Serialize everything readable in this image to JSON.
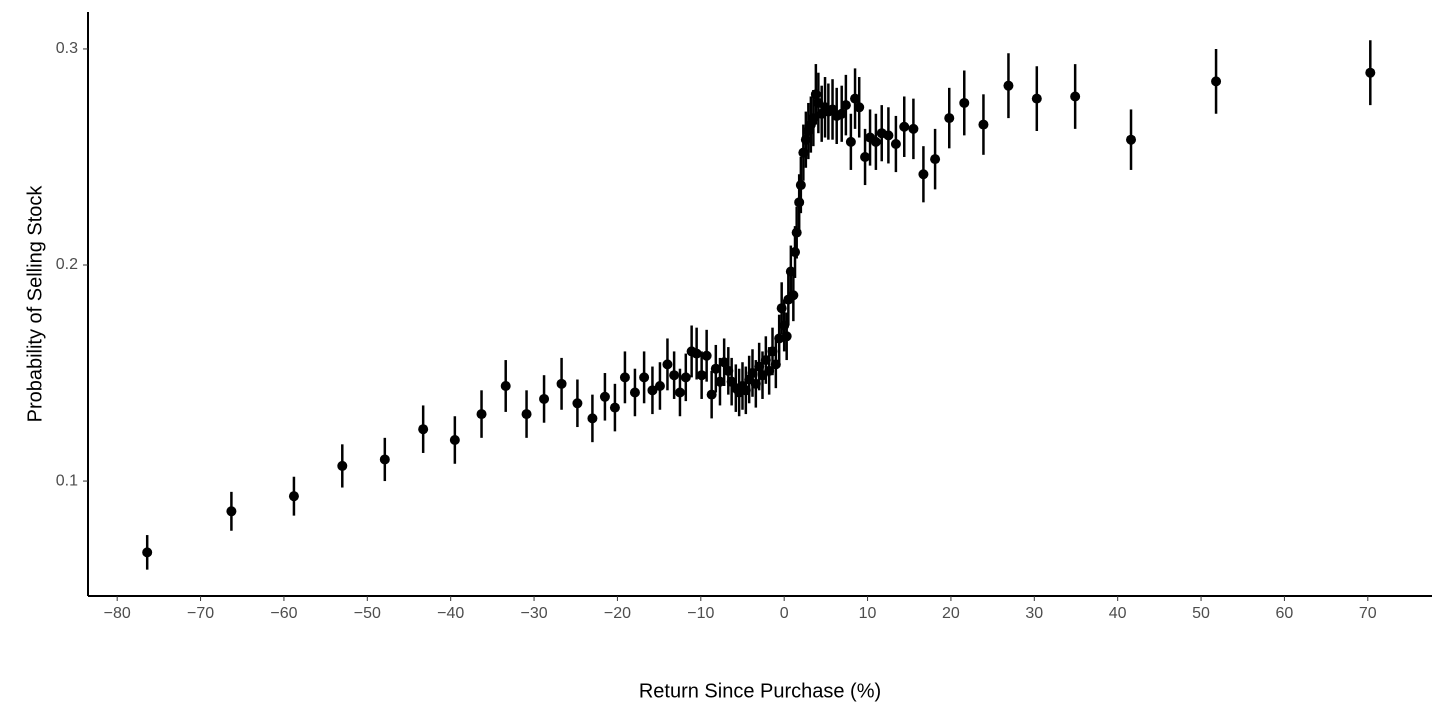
{
  "chart_data": {
    "type": "scatter",
    "xlabel": "Return Since Purchase (%)",
    "ylabel": "Probability of Selling Stock",
    "xlim": [
      -83.5,
      77.7
    ],
    "ylim": [
      0.0468,
      0.3171
    ],
    "xticks": [
      {
        "value": -80,
        "label": "−80"
      },
      {
        "value": -70,
        "label": "−70"
      },
      {
        "value": -60,
        "label": "−60"
      },
      {
        "value": -50,
        "label": "−50"
      },
      {
        "value": -40,
        "label": "−40"
      },
      {
        "value": -30,
        "label": "−30"
      },
      {
        "value": -20,
        "label": "−20"
      },
      {
        "value": -10,
        "label": "−10"
      },
      0,
      10,
      20,
      30,
      40,
      50,
      60,
      70
    ],
    "yticks": [
      0.1,
      0.2,
      0.3
    ],
    "grid": false,
    "series": [
      {
        "color": "#000000",
        "x": [
          -76.4,
          -66.3,
          -58.8,
          -53.0,
          -47.9,
          -43.3,
          -39.5,
          -36.3,
          -33.4,
          -30.9,
          -28.8,
          -26.7,
          -24.8,
          -23.0,
          -21.5,
          -20.3,
          -19.1,
          -17.9,
          -16.8,
          -15.8,
          -14.9,
          -14.0,
          -13.2,
          -12.5,
          -11.8,
          -11.1,
          -10.5,
          -9.9,
          -9.3,
          -8.7,
          -8.2,
          -7.7,
          -7.2,
          -6.7,
          -6.3,
          -5.8,
          -5.4,
          -5.0,
          -4.6,
          -4.2,
          -3.8,
          -3.4,
          -3.0,
          -2.6,
          -2.2,
          -1.8,
          -1.4,
          -1.0,
          -0.6,
          -0.3,
          0.0,
          0.3,
          0.5,
          0.8,
          1.1,
          1.3,
          1.5,
          1.8,
          2.0,
          2.3,
          2.6,
          2.9,
          3.2,
          3.5,
          3.8,
          4.1,
          4.5,
          4.9,
          5.3,
          5.8,
          6.3,
          6.9,
          7.4,
          8.0,
          8.5,
          9.0,
          9.7,
          10.3,
          11.0,
          11.7,
          12.5,
          13.4,
          14.4,
          15.5,
          16.7,
          18.1,
          19.8,
          21.6,
          23.9,
          26.9,
          30.3,
          34.9,
          41.6,
          51.8,
          70.3
        ],
        "values": [
          0.067,
          0.086,
          0.093,
          0.107,
          0.11,
          0.124,
          0.119,
          0.131,
          0.144,
          0.131,
          0.138,
          0.145,
          0.136,
          0.129,
          0.139,
          0.134,
          0.148,
          0.141,
          0.148,
          0.142,
          0.144,
          0.154,
          0.149,
          0.141,
          0.148,
          0.16,
          0.159,
          0.149,
          0.158,
          0.14,
          0.152,
          0.146,
          0.155,
          0.151,
          0.146,
          0.143,
          0.141,
          0.144,
          0.142,
          0.147,
          0.15,
          0.145,
          0.153,
          0.149,
          0.156,
          0.151,
          0.16,
          0.154,
          0.166,
          0.18,
          0.172,
          0.167,
          0.184,
          0.197,
          0.186,
          0.206,
          0.215,
          0.229,
          0.237,
          0.252,
          0.258,
          0.262,
          0.265,
          0.268,
          0.279,
          0.275,
          0.27,
          0.273,
          0.271,
          0.272,
          0.269,
          0.27,
          0.274,
          0.257,
          0.277,
          0.273,
          0.25,
          0.259,
          0.257,
          0.261,
          0.26,
          0.256,
          0.264,
          0.263,
          0.242,
          0.249,
          0.268,
          0.275,
          0.265,
          0.283,
          0.277,
          0.278,
          0.258,
          0.285,
          0.289
        ],
        "errors": [
          0.008,
          0.009,
          0.009,
          0.01,
          0.01,
          0.011,
          0.011,
          0.011,
          0.012,
          0.011,
          0.011,
          0.012,
          0.011,
          0.011,
          0.011,
          0.011,
          0.012,
          0.011,
          0.012,
          0.011,
          0.011,
          0.012,
          0.011,
          0.011,
          0.011,
          0.012,
          0.012,
          0.011,
          0.012,
          0.011,
          0.011,
          0.011,
          0.011,
          0.011,
          0.011,
          0.011,
          0.011,
          0.011,
          0.011,
          0.011,
          0.011,
          0.011,
          0.011,
          0.011,
          0.011,
          0.011,
          0.011,
          0.011,
          0.011,
          0.012,
          0.012,
          0.011,
          0.012,
          0.012,
          0.012,
          0.012,
          0.012,
          0.013,
          0.013,
          0.013,
          0.013,
          0.013,
          0.013,
          0.013,
          0.014,
          0.014,
          0.013,
          0.014,
          0.013,
          0.014,
          0.013,
          0.013,
          0.014,
          0.013,
          0.014,
          0.014,
          0.013,
          0.013,
          0.013,
          0.013,
          0.013,
          0.013,
          0.014,
          0.014,
          0.013,
          0.014,
          0.014,
          0.015,
          0.014,
          0.015,
          0.015,
          0.015,
          0.014,
          0.015,
          0.015
        ]
      }
    ]
  }
}
